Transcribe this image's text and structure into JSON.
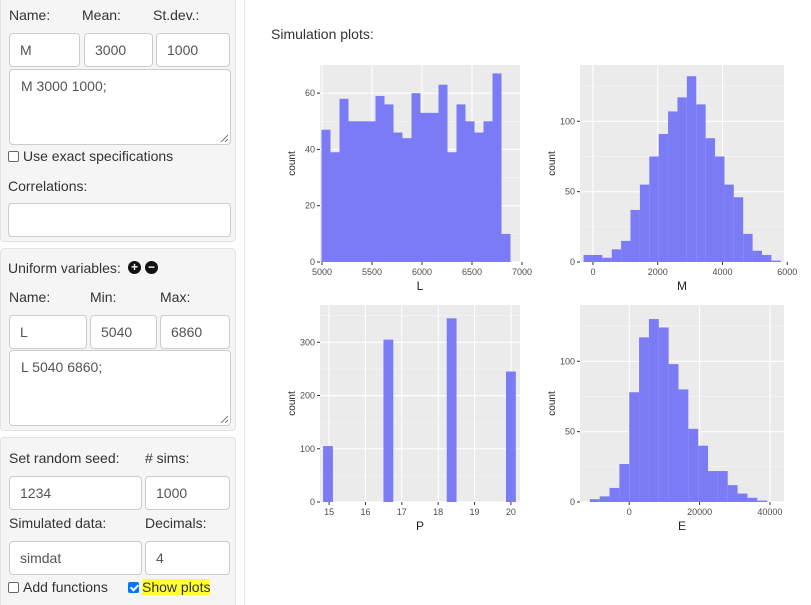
{
  "normal": {
    "headers": {
      "name": "Name:",
      "mean": "Mean:",
      "sd": "St.dev.:"
    },
    "name_value": "M",
    "mean_value": "3000",
    "sd_value": "1000",
    "spec": "M 3000 1000;",
    "exact_label": "Use exact specifications",
    "correlations_label": "Correlations:",
    "correlations_value": ""
  },
  "uniform": {
    "title": "Uniform variables:",
    "add_icon": "+",
    "remove_icon": "−",
    "headers": {
      "name": "Name:",
      "min": "Min:",
      "max": "Max:"
    },
    "name_value": "L",
    "min_value": "5040",
    "max_value": "6860",
    "spec": "L 5040 6860;"
  },
  "settings": {
    "seed_label": "Set random seed:",
    "sims_label": "# sims:",
    "seed_value": "1234",
    "sims_value": "1000",
    "simdata_label": "Simulated data:",
    "decimals_label": "Decimals:",
    "simdata_value": "simdat",
    "decimals_value": "4",
    "add_functions_label": "Add functions",
    "show_plots_label": "Show plots",
    "add_functions_checked": false,
    "show_plots_checked": true
  },
  "main": {
    "title": "Simulation plots:"
  },
  "colors": {
    "bar": "#7b7bf5",
    "panel": "#ebebeb",
    "highlight": "#ffff33",
    "checkbox": "#0075ff"
  },
  "icons": {
    "add": "plus-circle-icon",
    "remove": "minus-circle-icon"
  },
  "chart_data": [
    {
      "type": "bar",
      "xlabel": "L",
      "ylabel": "count",
      "xticks": [
        "5000",
        "5500",
        "6000",
        "6500",
        "7000"
      ],
      "yticks": [
        "0",
        "20",
        "40",
        "60"
      ],
      "xlim": [
        4980,
        6980
      ],
      "ylim": [
        0,
        70
      ],
      "bin_width": 90,
      "bins": [
        {
          "x": 5040,
          "y": 47
        },
        {
          "x": 5130,
          "y": 39
        },
        {
          "x": 5220,
          "y": 58
        },
        {
          "x": 5310,
          "y": 50
        },
        {
          "x": 5400,
          "y": 50
        },
        {
          "x": 5490,
          "y": 50
        },
        {
          "x": 5580,
          "y": 59
        },
        {
          "x": 5670,
          "y": 56
        },
        {
          "x": 5760,
          "y": 46
        },
        {
          "x": 5850,
          "y": 44
        },
        {
          "x": 5940,
          "y": 60
        },
        {
          "x": 6030,
          "y": 53
        },
        {
          "x": 6120,
          "y": 53
        },
        {
          "x": 6210,
          "y": 63
        },
        {
          "x": 6300,
          "y": 39
        },
        {
          "x": 6390,
          "y": 56
        },
        {
          "x": 6480,
          "y": 50
        },
        {
          "x": 6570,
          "y": 46
        },
        {
          "x": 6660,
          "y": 50
        },
        {
          "x": 6750,
          "y": 67
        },
        {
          "x": 6840,
          "y": 10
        }
      ]
    },
    {
      "type": "bar",
      "xlabel": "M",
      "ylabel": "count",
      "xticks": [
        "0",
        "2000",
        "4000",
        "6000"
      ],
      "yticks": [
        "0",
        "50",
        "100"
      ],
      "xlim": [
        -400,
        5900
      ],
      "ylim": [
        0,
        140
      ],
      "bin_width": 290,
      "bins": [
        {
          "x": -145,
          "y": 5
        },
        {
          "x": 145,
          "y": 5
        },
        {
          "x": 435,
          "y": 3
        },
        {
          "x": 725,
          "y": 9
        },
        {
          "x": 1015,
          "y": 15
        },
        {
          "x": 1305,
          "y": 37
        },
        {
          "x": 1595,
          "y": 55
        },
        {
          "x": 1885,
          "y": 75
        },
        {
          "x": 2175,
          "y": 91
        },
        {
          "x": 2465,
          "y": 107
        },
        {
          "x": 2755,
          "y": 117
        },
        {
          "x": 3045,
          "y": 132
        },
        {
          "x": 3335,
          "y": 112
        },
        {
          "x": 3625,
          "y": 88
        },
        {
          "x": 3915,
          "y": 75
        },
        {
          "x": 4205,
          "y": 55
        },
        {
          "x": 4495,
          "y": 46
        },
        {
          "x": 4785,
          "y": 20
        },
        {
          "x": 5075,
          "y": 8
        },
        {
          "x": 5365,
          "y": 5
        },
        {
          "x": 5655,
          "y": 1
        }
      ]
    },
    {
      "type": "bar",
      "xlabel": "P",
      "ylabel": "count",
      "xticks": [
        "15",
        "16",
        "17",
        "18",
        "19",
        "20"
      ],
      "yticks": [
        "0",
        "100",
        "200",
        "300"
      ],
      "xlim": [
        14.75,
        20.25
      ],
      "ylim": [
        0,
        370
      ],
      "bin_width": 0.27,
      "bins": [
        {
          "x": 14.97,
          "y": 105
        },
        {
          "x": 16.63,
          "y": 305
        },
        {
          "x": 18.37,
          "y": 345
        },
        {
          "x": 20.0,
          "y": 245
        }
      ]
    },
    {
      "type": "bar",
      "xlabel": "E",
      "ylabel": "count",
      "xticks": [
        "0",
        "20000",
        "40000"
      ],
      "yticks": [
        "0",
        "50",
        "100"
      ],
      "xlim": [
        -14000,
        44000
      ],
      "ylim": [
        0,
        140
      ],
      "bin_width": 2800,
      "bins": [
        {
          "x": -9800,
          "y": 2
        },
        {
          "x": -7000,
          "y": 4
        },
        {
          "x": -4200,
          "y": 10
        },
        {
          "x": -1400,
          "y": 27
        },
        {
          "x": 1400,
          "y": 78
        },
        {
          "x": 4200,
          "y": 117
        },
        {
          "x": 7000,
          "y": 130
        },
        {
          "x": 9800,
          "y": 124
        },
        {
          "x": 12600,
          "y": 98
        },
        {
          "x": 15400,
          "y": 80
        },
        {
          "x": 18200,
          "y": 52
        },
        {
          "x": 21000,
          "y": 40
        },
        {
          "x": 23800,
          "y": 22
        },
        {
          "x": 26600,
          "y": 22
        },
        {
          "x": 29400,
          "y": 12
        },
        {
          "x": 32200,
          "y": 6
        },
        {
          "x": 35000,
          "y": 3
        },
        {
          "x": 37800,
          "y": 1
        },
        {
          "x": 40600,
          "y": 0
        }
      ]
    }
  ]
}
